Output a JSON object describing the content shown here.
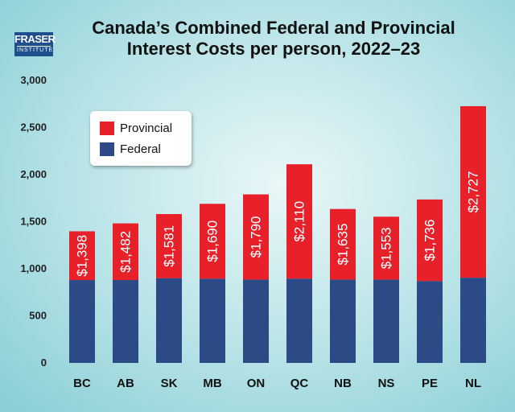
{
  "header": {
    "title_line1": "Canada’s Combined Federal and Provincial",
    "title_line2": "Interest Costs per person, 2022–23"
  },
  "logo": {
    "line1": "FRASER",
    "line2": "INSTITUTE",
    "color": "#1f4e8c"
  },
  "colors": {
    "provincial": "#e8202a",
    "federal": "#2b4a86",
    "background": "#9ed8dd"
  },
  "legend": {
    "provincial_label": "Provincial",
    "federal_label": "Federal",
    "placement": "top-left"
  },
  "chart_data": {
    "type": "bar",
    "stacked": true,
    "title": "Canada’s Combined Federal and Provincial Interest Costs per person, 2022–23",
    "xlabel": "",
    "ylabel": "",
    "categories": [
      "BC",
      "AB",
      "SK",
      "MB",
      "ON",
      "QC",
      "NB",
      "NS",
      "PE",
      "NL"
    ],
    "series": [
      {
        "name": "Federal",
        "values": [
          880,
          880,
          900,
          895,
          885,
          895,
          885,
          885,
          870,
          905
        ]
      },
      {
        "name": "Provincial",
        "values": [
          518,
          602,
          681,
          795,
          905,
          1215,
          750,
          668,
          866,
          1822
        ]
      }
    ],
    "totals": [
      1398,
      1482,
      1581,
      1690,
      1790,
      2110,
      1635,
      1553,
      1736,
      2727
    ],
    "total_labels": [
      "$1,398",
      "$1,482",
      "$1,581",
      "$1,690",
      "$1,790",
      "$2,110",
      "$1,635",
      "$1,553",
      "$1,736",
      "$2,727"
    ],
    "ylim": [
      0,
      3000
    ],
    "yticks": [
      0,
      500,
      1000,
      1500,
      2000,
      2500,
      3000
    ],
    "ytick_labels": [
      "0",
      "500",
      "1,000",
      "1,500",
      "2,000",
      "2,500",
      "3,000"
    ],
    "grid": false,
    "legend_position": "top-left"
  }
}
